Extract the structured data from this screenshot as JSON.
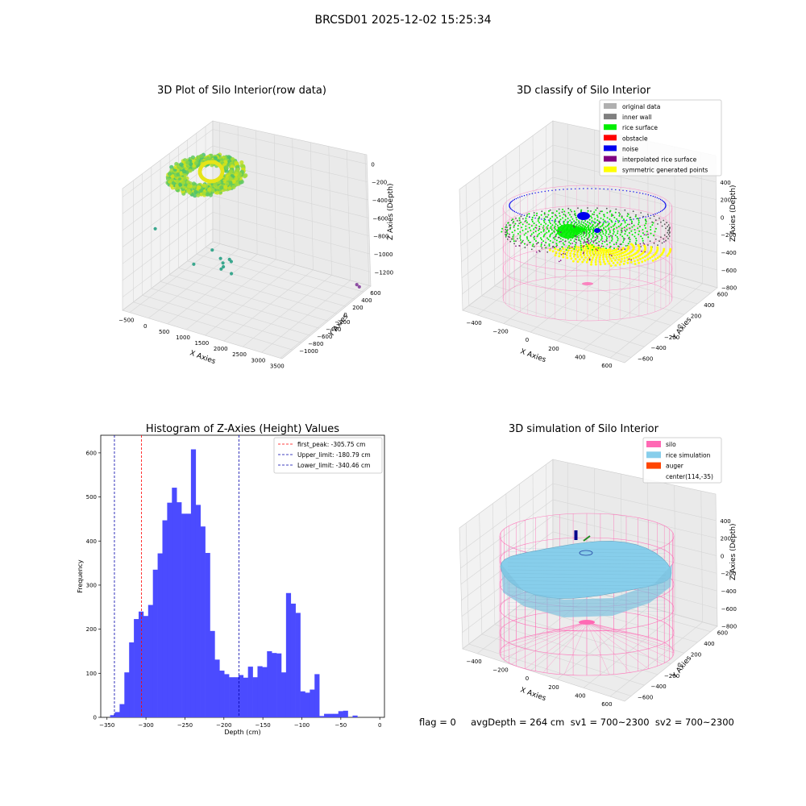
{
  "figure": {
    "suptitle": "BRCSD01 2025-12-02 15:25:34",
    "flag_line": "flag = 0     avgDepth = 264 cm  sv1 = 700~2300  sv2 = 700~2300"
  },
  "colors": {
    "histogram_bar": "#4b4bff",
    "first_peak_line": "#ff0000",
    "limit_line": "#0000aa",
    "silo": "#ff69b4",
    "rice_simulation": "#87ceeb",
    "auger": "#ff4500",
    "original_data": "#b0b0b0",
    "inner_wall": "#808080",
    "rice_surface": "#00ee00",
    "obstacle": "#ff0000",
    "noise": "#0000ee",
    "interpolated_rice_surface": "#800080",
    "symmetric_generated_points": "#ffff00"
  },
  "chart_data": [
    {
      "type": "scatter",
      "projection": "3d",
      "title": "3D Plot of Silo Interior(row data)",
      "xlabel": "X Axies",
      "ylabel": "Y Axies",
      "zlabel": "Z Axies (Depth)",
      "x_ticks": [
        "−500",
        "0",
        "500",
        "1000",
        "1500",
        "2000",
        "2500",
        "3000",
        "3500"
      ],
      "y_ticks": [
        "−1000",
        "−800",
        "−600",
        "−400",
        "−200",
        "0",
        "200",
        "400",
        "600"
      ],
      "z_ticks": [
        "0",
        "−200",
        "−400",
        "−600",
        "−800",
        "−1000",
        "−1200"
      ],
      "xlim": [
        -550,
        3600
      ],
      "ylim": [
        -1100,
        650
      ],
      "zlim": [
        -1300,
        80
      ],
      "grid": true,
      "colormap": "viridis",
      "point_groups": [
        {
          "name": "",
          "description_free": true,
          "x": [
            -300,
            700
          ],
          "y": [
            -100,
            600
          ],
          "z": [
            -400,
            -100
          ]
        }
      ],
      "scattered_points": [
        {
          "x": 100,
          "y": 500,
          "z": -350
        },
        {
          "x": 1050,
          "y": 100,
          "z": -650
        },
        {
          "x": 1200,
          "y": 50,
          "z": -750
        },
        {
          "x": 1250,
          "y": 40,
          "z": -800
        },
        {
          "x": 1150,
          "y": 0,
          "z": -900
        },
        {
          "x": 1180,
          "y": -20,
          "z": -880
        },
        {
          "x": 1500,
          "y": 100,
          "z": -700
        },
        {
          "x": 1520,
          "y": 80,
          "z": -730
        },
        {
          "x": 300,
          "y": -100,
          "z": -1000
        },
        {
          "x": 1350,
          "y": -50,
          "z": -950
        },
        {
          "x": 3500,
          "y": -900,
          "z": -1200
        },
        {
          "x": 3500,
          "y": -950,
          "z": -1250
        }
      ]
    },
    {
      "type": "scatter",
      "projection": "3d",
      "title": "3D classify of Silo Interior",
      "xlabel": "X Axies",
      "ylabel": "Y Axies",
      "zlabel": "Z Axies (Depth)",
      "x_ticks": [
        "−400",
        "−200",
        "0",
        "200",
        "400",
        "600"
      ],
      "y_ticks": [
        "−600",
        "−400",
        "−200",
        "0",
        "200",
        "400",
        "600"
      ],
      "z_ticks": [
        "400",
        "200",
        "0",
        "−200",
        "−400",
        "−600",
        "−800"
      ],
      "xlim": [
        -500,
        700
      ],
      "ylim": [
        -650,
        650
      ],
      "zlim": [
        -900,
        450
      ],
      "grid": true,
      "legend": [
        "original data",
        "inner wall",
        "rice surface",
        "obstacle",
        "noise",
        "interpolated rice surface",
        "symmetric generated points"
      ],
      "legend_position": "top-right"
    },
    {
      "type": "bar",
      "title": "Histogram of Z-Axies (Height) Values",
      "xlabel": "Depth (cm)",
      "ylabel": "Frequency",
      "x_ticks": [
        "−350",
        "−300",
        "−250",
        "−200",
        "−150",
        "−100",
        "−50",
        "0"
      ],
      "y_ticks": [
        "0",
        "100",
        "200",
        "300",
        "400",
        "500",
        "600"
      ],
      "xlim": [
        -358,
        6
      ],
      "ylim": [
        0,
        640
      ],
      "bin_width": 6.1,
      "bins_start": -346,
      "values": [
        5,
        12,
        30,
        102,
        170,
        223,
        240,
        230,
        255,
        335,
        372,
        447,
        487,
        521,
        488,
        462,
        462,
        608,
        482,
        433,
        373,
        196,
        131,
        106,
        98,
        91,
        91,
        96,
        90,
        115,
        91,
        116,
        114,
        150,
        146,
        145,
        102,
        282,
        258,
        237,
        59,
        56,
        63,
        98,
        3,
        8,
        8,
        8,
        14,
        15,
        0,
        4,
        0
      ],
      "vlines": [
        {
          "label": "first_peak: -305.75 cm",
          "x": -305.75,
          "color": "#ff0000"
        },
        {
          "label": "Upper_limit: -180.79 cm",
          "x": -180.79,
          "color": "#0000aa"
        },
        {
          "label": "Lower_limit: -340.46 cm",
          "x": -340.46,
          "color": "#0000aa"
        }
      ],
      "legend_position": "top-right",
      "grid": false
    },
    {
      "type": "surface",
      "projection": "3d",
      "title": "3D simulation of Silo Interior",
      "xlabel": "X Axies",
      "ylabel": "Y Axies",
      "zlabel": "Z Axies (Depth)",
      "x_ticks": [
        "−400",
        "−200",
        "0",
        "200",
        "400",
        "600"
      ],
      "y_ticks": [
        "−600",
        "−400",
        "−200",
        "0",
        "200",
        "400",
        "600"
      ],
      "z_ticks": [
        "400",
        "200",
        "0",
        "−200",
        "−400",
        "−600",
        "−800"
      ],
      "xlim": [
        -500,
        700
      ],
      "ylim": [
        -650,
        650
      ],
      "zlim": [
        -900,
        450
      ],
      "grid": true,
      "legend": [
        "silo",
        "rice simulation",
        "auger",
        "center(114,-35)"
      ],
      "legend_position": "top-right"
    }
  ]
}
